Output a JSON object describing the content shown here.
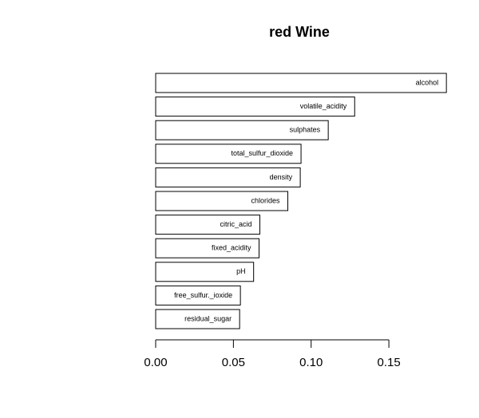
{
  "chart_data": {
    "type": "barh",
    "title": "red Wine",
    "categories": [
      "alcohol",
      "volatile_acidity",
      "sulphates",
      "total_sulfur_dioxide",
      "density",
      "chlorides",
      "citric_acid",
      "fixed_acidity",
      "pH",
      "free_sulfur._ioxide",
      "residual_sugar"
    ],
    "values": [
      0.187,
      0.128,
      0.111,
      0.0935,
      0.093,
      0.085,
      0.067,
      0.0665,
      0.063,
      0.0545,
      0.054
    ],
    "color": "#ffffff",
    "xlim": [
      0,
      0.19
    ],
    "xticks": [
      {
        "value": 0,
        "label": "0.00"
      },
      {
        "value": 0.05,
        "label": "0.05"
      },
      {
        "value": 0.1,
        "label": "0.10"
      },
      {
        "value": 0.15,
        "label": "0.15"
      }
    ]
  }
}
